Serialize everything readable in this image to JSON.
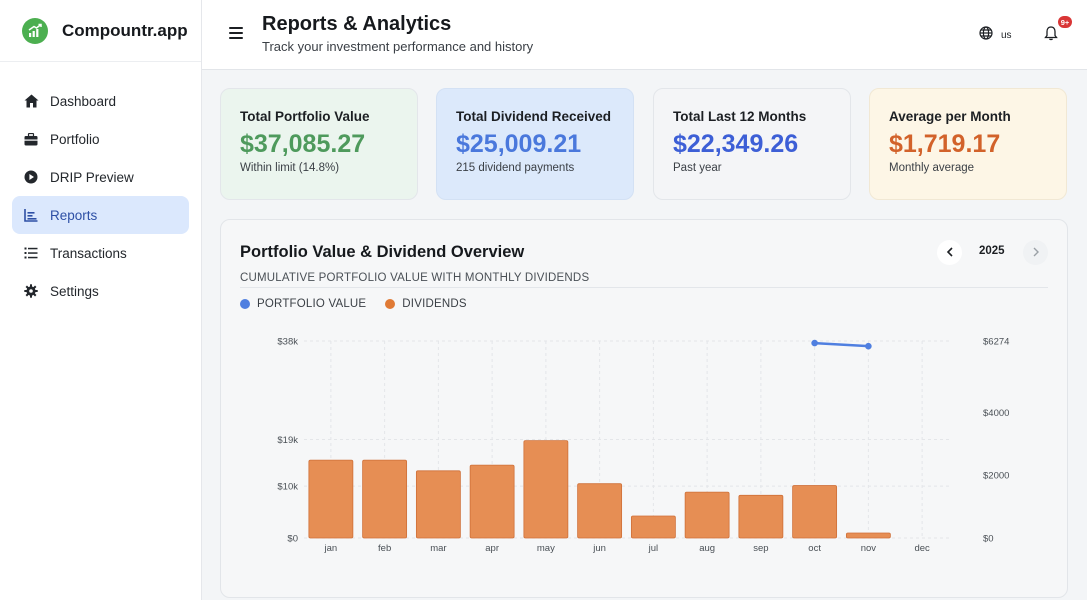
{
  "brand": {
    "name": "Compountr.app",
    "logo_icon": "chart-growth-icon",
    "color": "#4caf50"
  },
  "sidebar": {
    "items": [
      {
        "label": "Dashboard",
        "icon": "home-icon",
        "active": false
      },
      {
        "label": "Portfolio",
        "icon": "briefcase-icon",
        "active": false
      },
      {
        "label": "DRIP Preview",
        "icon": "play-circle-icon",
        "active": false
      },
      {
        "label": "Reports",
        "icon": "bar-chart-icon",
        "active": true
      },
      {
        "label": "Transactions",
        "icon": "list-icon",
        "active": false
      },
      {
        "label": "Settings",
        "icon": "gear-icon",
        "active": false
      }
    ]
  },
  "header": {
    "title": "Reports & Analytics",
    "subtitle": "Track your investment performance and history",
    "language": "us",
    "notification_badge": "9+"
  },
  "stats": [
    {
      "title": "Total Portfolio Value",
      "value": "$37,085.27",
      "note": "Within limit (14.8%)",
      "color": "#4e9a5c"
    },
    {
      "title": "Total Dividend Received",
      "value": "$25,009.21",
      "note": "215 dividend payments",
      "color": "#4a78dc"
    },
    {
      "title": "Total Last 12 Months",
      "value": "$22,349.26",
      "note": "Past year",
      "color": "#3d5fd6"
    },
    {
      "title": "Average per Month",
      "value": "$1,719.17",
      "note": "Monthly average",
      "color": "#d2622a"
    }
  ],
  "chart_panel": {
    "title": "Portfolio Value & Dividend Overview",
    "subtitle": "CUMULATIVE PORTFOLIO VALUE WITH MONTHLY DIVIDENDS",
    "year": "2025",
    "legend": [
      {
        "label": "PORTFOLIO VALUE",
        "color": "#4f7fe0"
      },
      {
        "label": "DIVIDENDS",
        "color": "#e07a35"
      }
    ]
  },
  "chart_data": {
    "type": "bar",
    "categories": [
      "jan",
      "feb",
      "mar",
      "apr",
      "may",
      "jun",
      "jul",
      "aug",
      "sep",
      "oct",
      "nov",
      "dec"
    ],
    "series": [
      {
        "name": "DIVIDENDS",
        "type": "bar",
        "axis": "right",
        "color": "#e68e54",
        "values": [
          2480,
          2480,
          2140,
          2320,
          3100,
          1730,
          700,
          1460,
          1360,
          1670,
          160,
          0
        ]
      },
      {
        "name": "PORTFOLIO VALUE",
        "type": "line",
        "axis": "left",
        "color": "#4f7fe0",
        "values": [
          null,
          null,
          null,
          null,
          null,
          null,
          null,
          null,
          null,
          37600,
          37000,
          null
        ]
      }
    ],
    "left_axis": {
      "ticks": [
        0,
        10000,
        19000,
        38000
      ],
      "tick_labels": [
        "$0",
        "$10k",
        "$19k",
        "$38k"
      ],
      "ylim": [
        0,
        38000
      ]
    },
    "right_axis": {
      "ticks": [
        0,
        2000,
        4000,
        6274
      ],
      "tick_labels": [
        "$0",
        "$2000",
        "$4000",
        "$6274"
      ],
      "ylim": [
        0,
        6274
      ]
    },
    "grid": true
  }
}
